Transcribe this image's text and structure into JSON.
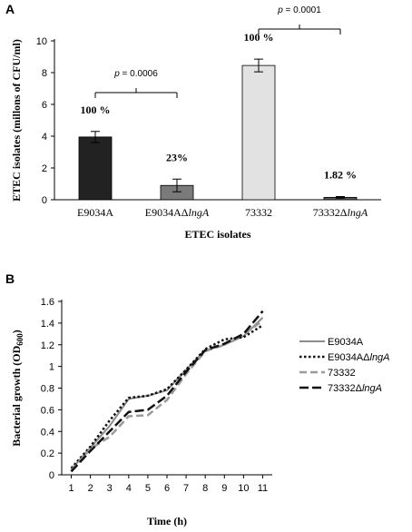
{
  "figure": {
    "panel_a_letter": "A",
    "panel_b_letter": "B"
  },
  "chart_data": [
    {
      "type": "bar",
      "panel": "A",
      "categories": [
        {
          "base": "E9034A",
          "italic": ""
        },
        {
          "base": "E9034AΔ",
          "italic": "lngA"
        },
        {
          "base": "73332",
          "italic": ""
        },
        {
          "base": "73332Δ",
          "italic": "lngA"
        }
      ],
      "values": [
        3.95,
        0.9,
        8.45,
        0.15
      ],
      "errors": [
        0.35,
        0.4,
        0.4,
        0.05
      ],
      "colors": [
        "#222222",
        "#7a7a7a",
        "#e2e2e2",
        "#5a5a5a"
      ],
      "bar_labels": [
        "100 %",
        "23%",
        "100 %",
        "1.82 %"
      ],
      "ylim": [
        0,
        10
      ],
      "yticks": [
        "0",
        "2",
        "4",
        "6",
        "8",
        "10"
      ],
      "xlabel": "ETEC isolates",
      "ylabel": "ETEC isolates (millons of CFU/ml)",
      "comparisons": [
        {
          "from": 0,
          "to": 1,
          "label_prefix": "p",
          "label_value": " = 0.0006"
        },
        {
          "from": 2,
          "to": 3,
          "label_prefix": "p",
          "label_value": " = 0.0001"
        }
      ],
      "grid": false
    },
    {
      "type": "line",
      "panel": "B",
      "x": [
        1,
        2,
        3,
        4,
        5,
        6,
        7,
        8,
        9,
        10,
        11
      ],
      "xticks": [
        "1",
        "2",
        "3",
        "4",
        "5",
        "6",
        "7",
        "8",
        "9",
        "10",
        "11"
      ],
      "ylim": [
        0,
        1.6
      ],
      "yticks": [
        "0",
        "0.2",
        "0.4",
        "0.6",
        "0.8",
        "1",
        "1.2",
        "1.4",
        "1.6"
      ],
      "xlabel": "Time (h)",
      "ylabel_main": "Bacterial growth  (OD",
      "ylabel_sub": "600",
      "ylabel_end": ")",
      "legend_position": "right",
      "series": [
        {
          "name_base": "E9034A",
          "name_italic": "",
          "color": "#8c8c8c",
          "dash": "",
          "width": 2,
          "values": [
            0.05,
            0.25,
            0.45,
            0.7,
            0.73,
            0.78,
            0.97,
            1.15,
            1.2,
            1.28,
            1.45
          ]
        },
        {
          "name_base": "E9034AΔ",
          "name_italic": "lngA",
          "color": "#111111",
          "dash": "2.5,2.5",
          "width": 2.5,
          "values": [
            0.06,
            0.26,
            0.5,
            0.71,
            0.73,
            0.79,
            0.97,
            1.16,
            1.25,
            1.27,
            1.38
          ]
        },
        {
          "name_base": "73332",
          "name_italic": "",
          "color": "#9a9a9a",
          "dash": "8,4",
          "width": 2.5,
          "values": [
            0.04,
            0.24,
            0.35,
            0.54,
            0.55,
            0.69,
            0.93,
            1.14,
            1.2,
            1.3,
            1.42
          ]
        },
        {
          "name_base": "73332Δ",
          "name_italic": "lngA",
          "color": "#111111",
          "dash": "10,4",
          "width": 2.5,
          "values": [
            0.03,
            0.22,
            0.4,
            0.58,
            0.6,
            0.73,
            0.95,
            1.15,
            1.21,
            1.3,
            1.51
          ]
        }
      ],
      "grid": false
    }
  ]
}
